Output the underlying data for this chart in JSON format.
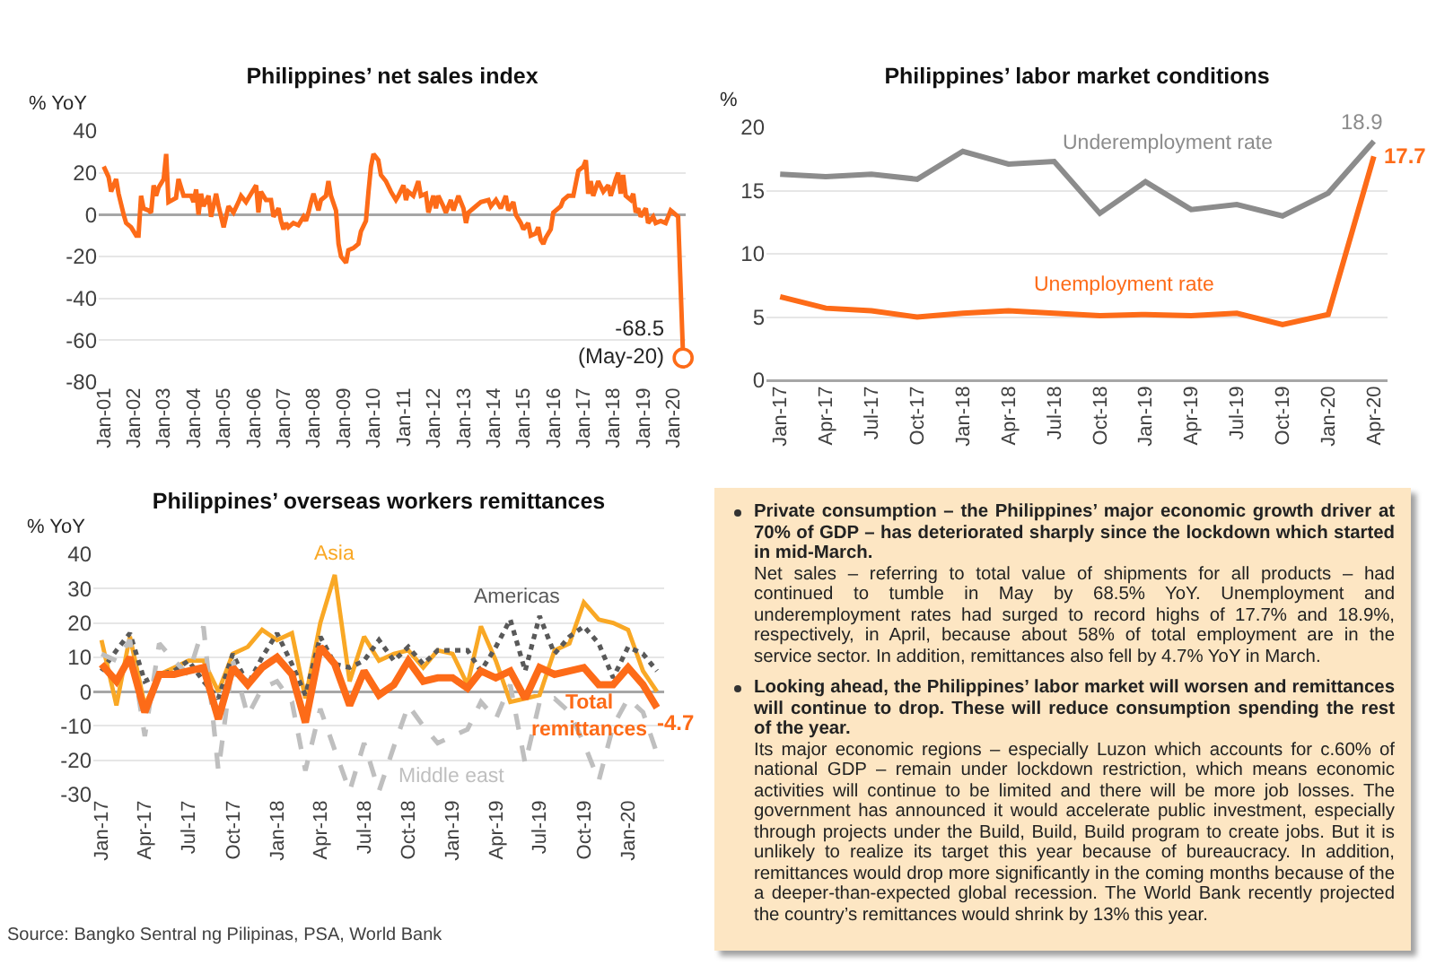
{
  "chart_data": [
    {
      "type": "line",
      "title": "Philippines’ net sales index",
      "ylabel": "% YoY",
      "x": [
        "2001-01",
        "2001-03",
        "2001-04",
        "2001-06",
        "2001-07",
        "2001-09",
        "2001-10",
        "2001-12",
        "2002-02",
        "2002-03",
        "2002-04",
        "2002-05",
        "2002-07",
        "2002-08",
        "2002-09",
        "2002-10",
        "2002-11",
        "2003-01",
        "2003-02",
        "2003-03",
        "2003-06",
        "2003-07",
        "2003-09",
        "2003-12",
        "2004-01",
        "2004-02",
        "2004-03",
        "2004-04",
        "2004-05",
        "2004-07",
        "2004-08",
        "2004-10",
        "2004-11",
        "2005-01",
        "2005-03",
        "2005-05",
        "2005-07",
        "2005-08",
        "2005-10",
        "2005-12",
        "2006-02",
        "2006-03",
        "2006-04",
        "2006-06",
        "2006-08",
        "2006-09",
        "2006-11",
        "2006-12",
        "2007-01",
        "2007-02",
        "2007-03",
        "2007-05",
        "2007-07",
        "2007-09",
        "2007-10",
        "2007-11",
        "2007-12",
        "2008-01",
        "2008-03",
        "2008-04",
        "2008-06",
        "2008-07",
        "2008-08",
        "2008-10",
        "2008-11",
        "2008-12",
        "2009-02",
        "2009-03",
        "2009-05",
        "2009-07",
        "2009-08",
        "2009-10",
        "2009-11",
        "2009-12",
        "2010-01",
        "2010-03",
        "2010-04",
        "2010-06",
        "2010-08",
        "2010-10",
        "2010-11",
        "2011-01",
        "2011-02",
        "2011-03",
        "2011-05",
        "2011-07",
        "2011-08",
        "2011-10",
        "2011-11",
        "2012-01",
        "2012-02",
        "2012-03",
        "2012-05",
        "2012-06",
        "2012-08",
        "2012-09",
        "2012-11",
        "2013-01",
        "2013-02",
        "2013-03",
        "2013-06",
        "2013-08",
        "2013-11",
        "2013-12",
        "2014-02",
        "2014-04",
        "2014-06",
        "2014-07",
        "2014-09",
        "2014-10",
        "2014-12",
        "2015-01",
        "2015-03",
        "2015-04",
        "2015-06",
        "2015-07",
        "2015-08",
        "2015-09",
        "2015-10",
        "2015-12",
        "2016-01",
        "2016-03",
        "2016-04",
        "2016-05",
        "2016-07",
        "2016-09",
        "2016-11",
        "2017-01",
        "2017-02",
        "2017-03",
        "2017-04",
        "2017-05",
        "2017-07",
        "2017-09",
        "2017-11",
        "2017-12",
        "2018-02",
        "2018-03",
        "2018-04",
        "2018-05",
        "2018-06",
        "2018-08",
        "2018-09",
        "2018-10",
        "2018-11",
        "2018-12",
        "2019-02",
        "2019-03",
        "2019-05",
        "2019-06",
        "2019-08",
        "2019-10",
        "2019-12",
        "2020-01",
        "2020-03",
        "2020-05"
      ],
      "series": [
        {
          "color": "#fd6b18",
          "values": [
            23,
            18,
            11,
            17,
            10,
            0,
            -4,
            -6,
            -10,
            -10,
            9,
            3,
            2,
            1,
            14,
            9,
            13,
            17,
            29,
            6,
            8,
            17,
            9,
            9,
            6,
            12,
            0,
            10,
            4,
            9,
            -1,
            10,
            4,
            -6,
            4,
            1,
            6,
            9,
            6,
            10,
            14,
            1,
            11,
            7,
            7,
            -1,
            3,
            -3,
            -7,
            -4,
            -6,
            -4,
            -5,
            -1,
            -3,
            1,
            6,
            10,
            2,
            7,
            9,
            16,
            9,
            2,
            -14,
            -20,
            -23,
            -17,
            -16,
            -14,
            -8,
            -3,
            11,
            23,
            29,
            26,
            19,
            16,
            11,
            7,
            9,
            14,
            7,
            11,
            9,
            16,
            9,
            10,
            1,
            9,
            3,
            9,
            4,
            1,
            7,
            2,
            9,
            3,
            -4,
            1,
            4,
            6,
            7,
            4,
            7,
            3,
            9,
            2,
            6,
            0,
            -4,
            -7,
            -4,
            -10,
            -9,
            -6,
            -12,
            -14,
            -11,
            -7,
            1,
            3,
            4,
            7,
            9,
            9,
            21,
            23,
            26,
            10,
            16,
            9,
            16,
            11,
            14,
            9,
            17,
            20,
            10,
            19,
            9,
            7,
            10,
            1,
            3,
            -1,
            3,
            -4,
            -1,
            -4,
            -3,
            -4,
            2,
            1,
            -1,
            -68.5
          ]
        }
      ],
      "xlim": [
        "2000-11",
        "2020-06"
      ],
      "xticks": [
        {
          "value": "2001-01",
          "label": "Jan-01"
        },
        {
          "value": "2002-01",
          "label": "Jan-02"
        },
        {
          "value": "2003-01",
          "label": "Jan-03"
        },
        {
          "value": "2004-01",
          "label": "Jan-04"
        },
        {
          "value": "2005-01",
          "label": "Jan-05"
        },
        {
          "value": "2006-01",
          "label": "Jan-06"
        },
        {
          "value": "2007-01",
          "label": "Jan-07"
        },
        {
          "value": "2008-01",
          "label": "Jan-08"
        },
        {
          "value": "2009-01",
          "label": "Jan-09"
        },
        {
          "value": "2010-01",
          "label": "Jan-10"
        },
        {
          "value": "2011-01",
          "label": "Jan-11"
        },
        {
          "value": "2012-01",
          "label": "Jan-12"
        },
        {
          "value": "2013-01",
          "label": "Jan-13"
        },
        {
          "value": "2014-01",
          "label": "Jan-14"
        },
        {
          "value": "2015-01",
          "label": "Jan-15"
        },
        {
          "value": "2016-01",
          "label": "Jan-16"
        },
        {
          "value": "2017-01",
          "label": "Jan-17"
        },
        {
          "value": "2018-01",
          "label": "Jan-18"
        },
        {
          "value": "2019-01",
          "label": "Jan-19"
        },
        {
          "value": "2020-01",
          "label": "Jan-20"
        }
      ],
      "ylim": [
        -80,
        40
      ],
      "yticks": [
        -80,
        -60,
        -40,
        -20,
        0,
        20,
        40
      ],
      "grid": "y",
      "annotations": [
        {
          "text": "-68.5\n(May-20)",
          "x": "2020-05",
          "y": -68.5
        }
      ]
    },
    {
      "type": "line",
      "title": "Philippines’ labor market conditions",
      "ylabel": "%",
      "categories": [
        "Jan-17",
        "Apr-17",
        "Jul-17",
        "Oct-17",
        "Jan-18",
        "Apr-18",
        "Jul-18",
        "Oct-18",
        "Jan-19",
        "Apr-19",
        "Jul-19",
        "Oct-19",
        "Jan-20",
        "Apr-20"
      ],
      "series": [
        {
          "name": "Underemployment rate",
          "color": "#8c8c8c",
          "values": [
            16.3,
            16.1,
            16.3,
            15.9,
            18.1,
            17.1,
            17.3,
            13.2,
            15.7,
            13.5,
            13.9,
            13.0,
            14.8,
            18.9
          ],
          "value_labels": [
            null,
            null,
            null,
            null,
            null,
            null,
            null,
            null,
            null,
            null,
            null,
            null,
            null,
            "18.9"
          ]
        },
        {
          "name": "Unemployment rate",
          "color": "#fd6b18",
          "values": [
            6.6,
            5.7,
            5.5,
            5.0,
            5.3,
            5.5,
            5.3,
            5.1,
            5.2,
            5.1,
            5.3,
            4.4,
            5.2,
            17.7
          ],
          "value_labels": [
            null,
            null,
            null,
            null,
            null,
            null,
            null,
            null,
            null,
            null,
            null,
            null,
            null,
            "17.7"
          ]
        }
      ],
      "ylim": [
        0,
        20
      ],
      "yticks": [
        0,
        5,
        10,
        15,
        20
      ],
      "grid": "y"
    },
    {
      "type": "line",
      "title": "Philippines’ overseas workers remittances",
      "ylabel": "% YoY",
      "x": [
        "2017-01",
        "2017-02",
        "2017-03",
        "2017-04",
        "2017-05",
        "2017-06",
        "2017-07",
        "2017-08",
        "2017-09",
        "2017-10",
        "2017-11",
        "2017-12",
        "2018-01",
        "2018-02",
        "2018-03",
        "2018-04",
        "2018-05",
        "2018-06",
        "2018-07",
        "2018-08",
        "2018-09",
        "2018-10",
        "2018-11",
        "2018-12",
        "2019-01",
        "2019-02",
        "2019-03",
        "2019-04",
        "2019-05",
        "2019-06",
        "2019-07",
        "2019-08",
        "2019-09",
        "2019-10",
        "2019-11",
        "2019-12",
        "2020-01",
        "2020-02",
        "2020-03"
      ],
      "series": [
        {
          "name": "Asia",
          "color": "#f9a825",
          "values": [
            15,
            -4,
            16,
            -4,
            5,
            7,
            9,
            9,
            0,
            11,
            13,
            18,
            15,
            17,
            -2,
            20,
            34,
            3,
            16,
            9,
            11,
            12,
            7,
            12,
            11,
            2,
            19,
            9,
            -3,
            -2,
            -1,
            12,
            14,
            26,
            21,
            20,
            18,
            6,
            0
          ]
        },
        {
          "name": "Americas",
          "color": "#595959",
          "line_style": "dotted",
          "values": [
            6,
            12,
            17,
            3,
            5,
            6,
            9,
            3,
            -2,
            11,
            2,
            10,
            17,
            8,
            -1,
            16,
            8,
            7,
            9,
            15,
            9,
            13,
            8,
            12,
            12,
            12,
            6,
            13,
            21,
            6,
            22,
            11,
            16,
            19,
            14,
            4,
            13,
            11,
            6
          ]
        },
        {
          "name": "Middle east",
          "color": "#bfbfbf",
          "line_style": "dashed",
          "values": [
            11,
            9,
            15,
            -13,
            14,
            9,
            5,
            19,
            -23,
            9,
            -7,
            1,
            3,
            -3,
            -23,
            -5,
            -17,
            -29,
            -15,
            -29,
            -16,
            -4,
            -10,
            -15,
            -13,
            -11,
            -3,
            -8,
            2,
            -21,
            -3,
            -2,
            -6,
            -15,
            -26,
            -10,
            -2,
            -6,
            -18
          ]
        },
        {
          "name": "Total remittances",
          "color": "#fd6b18",
          "values": [
            8,
            3,
            10,
            -6,
            5,
            5,
            6,
            7,
            -8,
            7,
            2,
            7,
            10,
            5,
            -9,
            13,
            8,
            -4,
            6,
            -1,
            2,
            9,
            3,
            4,
            4,
            1,
            6,
            4,
            6,
            -2,
            7,
            5,
            6,
            7,
            2,
            2,
            7,
            2,
            -4.7
          ],
          "value_labels": [
            null,
            null,
            null,
            null,
            null,
            null,
            null,
            null,
            null,
            null,
            null,
            null,
            null,
            null,
            null,
            null,
            null,
            null,
            null,
            null,
            null,
            null,
            null,
            null,
            null,
            null,
            null,
            null,
            null,
            null,
            null,
            null,
            null,
            null,
            null,
            null,
            null,
            null,
            "-4.7"
          ]
        }
      ],
      "xlim": [
        "2016-12-15",
        "2020-03-16"
      ],
      "xticks": [
        {
          "value": "2017-01",
          "label": "Jan-17"
        },
        {
          "value": "2017-04",
          "label": "Apr-17"
        },
        {
          "value": "2017-07",
          "label": "Jul-17"
        },
        {
          "value": "2017-10",
          "label": "Oct-17"
        },
        {
          "value": "2018-01",
          "label": "Jan-18"
        },
        {
          "value": "2018-04",
          "label": "Apr-18"
        },
        {
          "value": "2018-07",
          "label": "Jul-18"
        },
        {
          "value": "2018-10",
          "label": "Oct-18"
        },
        {
          "value": "2019-01",
          "label": "Jan-19"
        },
        {
          "value": "2019-04",
          "label": "Apr-19"
        },
        {
          "value": "2019-07",
          "label": "Jul-19"
        },
        {
          "value": "2019-10",
          "label": "Oct-19"
        },
        {
          "value": "2020-01",
          "label": "Jan-20"
        }
      ],
      "ylim": [
        -30,
        40
      ],
      "yticks": [
        -30,
        -20,
        -10,
        0,
        10,
        20,
        30,
        40
      ],
      "grid": "y",
      "annotations": [
        "Source: Bangko Sentral ng Pilipinas, PSA, World Bank"
      ]
    },
    {
      "type": "other",
      "annotations": [
        "Private consumption – the Philippines’ major economic growth driver at 70% of GDP – has deteriorated sharply since the lockdown which started in mid-March.",
        "Net sales – referring to total value of shipments for all products – had continued to tumble in May by 68.5% YoY. Unemployment and underemployment rates had surged to record highs of 17.7% and 18.9%, respectively, in April, because about 58% of total employment are in the service sector. In addition, remittances also fell by 4.7% YoY in March.",
        "Looking ahead, the Philippines’ labor market will worsen and remittances will continue to drop. These will reduce consumption spending the rest of the year.",
        "Its major economic regions – especially Luzon which accounts for c.60% of national GDP – remain under lockdown restriction, which means economic activities will continue to be limited and there will be more job losses. The government has announced it would accelerate public investment, especially through projects under the Build, Build, Build program to create jobs. But it is unlikely to realize its target this year because of bureaucracy. In addition, remittances would drop more significantly in the coming months because of the a deeper-than-expected global recession. The World Bank recently projected the country’s remittances would shrink by 13% this year."
      ]
    }
  ]
}
